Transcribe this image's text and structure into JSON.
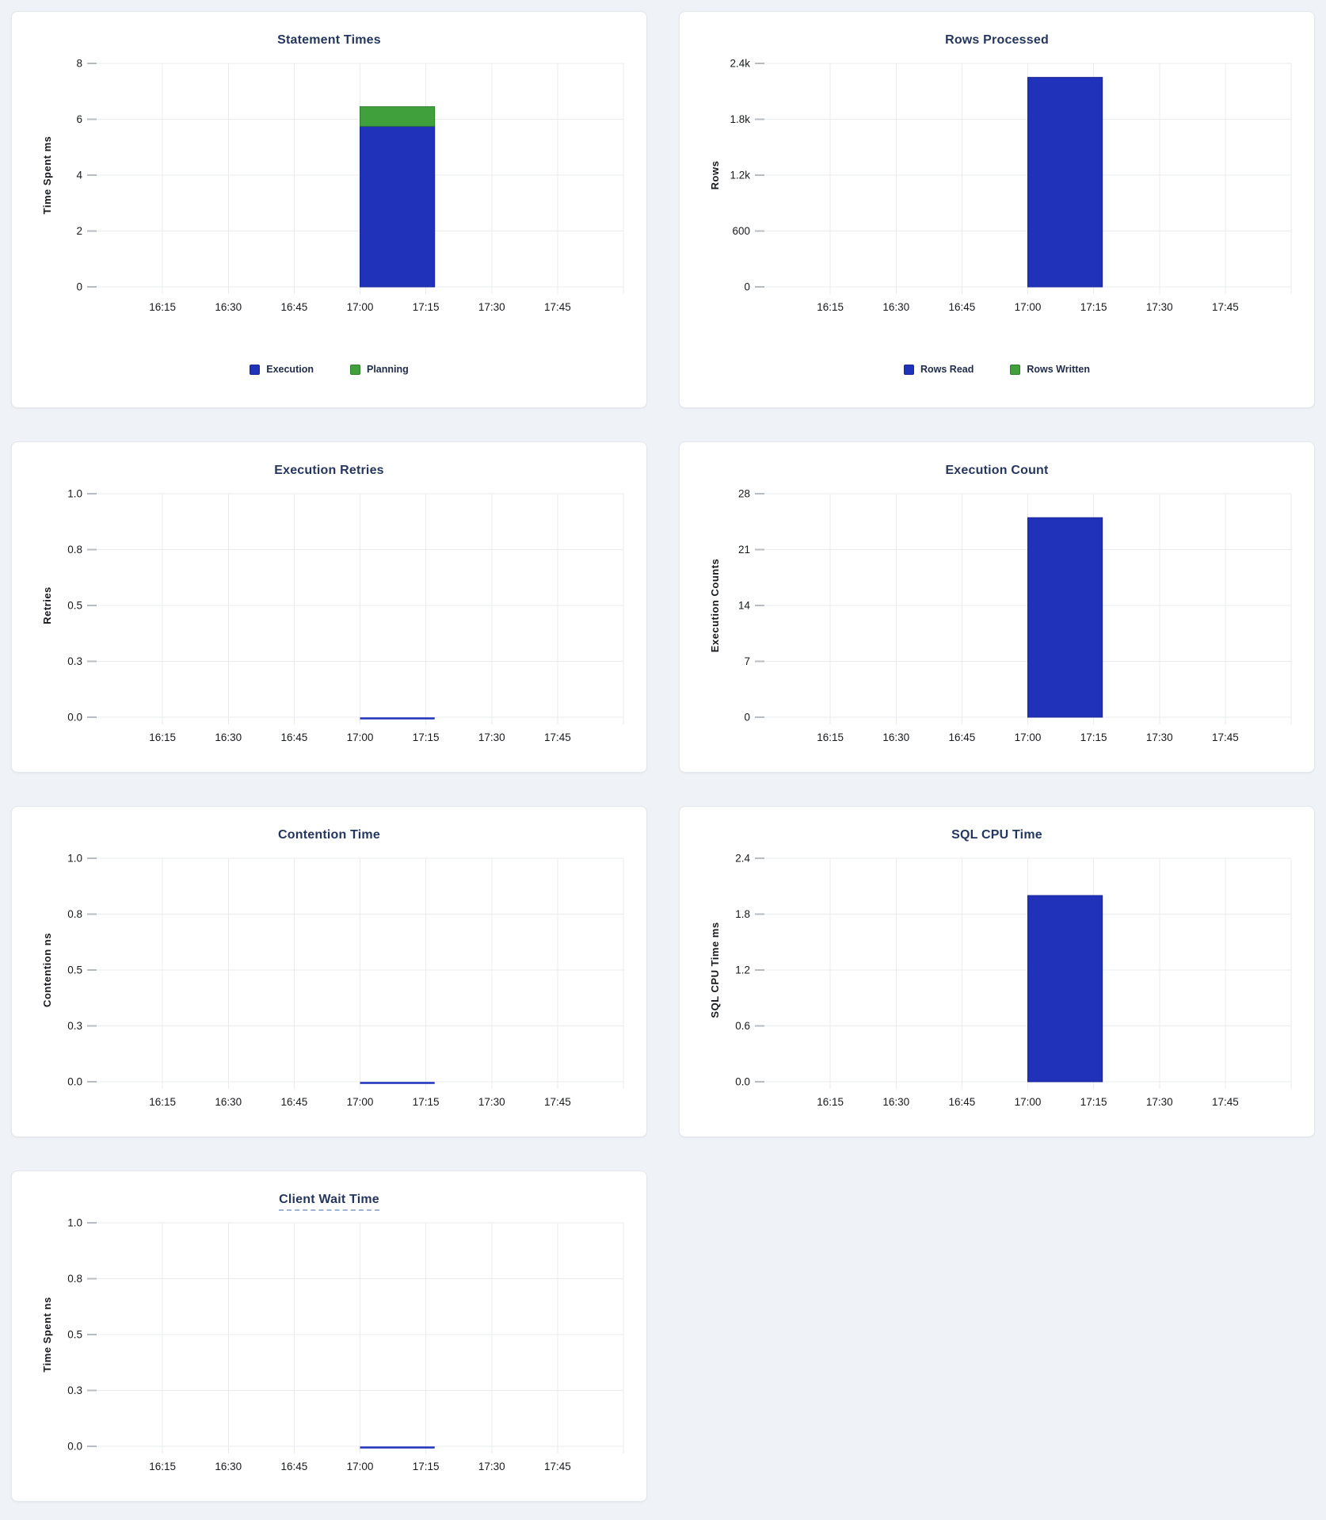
{
  "page": {
    "background": "#eff2f6"
  },
  "palette": {
    "bar_blue": "#2132ba",
    "bar_blue_edge": "#1a2894",
    "bar_green": "#3fa03c",
    "bar_green_edge": "#2e7d2c",
    "title_navy": "#25365e",
    "grid_line": "#e9ebee",
    "tick_mark": "#b7bbc2",
    "axis_text": "#17191d",
    "legend_text": "#1e2b49",
    "tooltip_underline": "#9fb3d4"
  },
  "x_axis": {
    "tick_labels": [
      "16:15",
      "16:30",
      "16:45",
      "17:00",
      "17:15",
      "17:30",
      "17:45"
    ],
    "tick_minutes": [
      15,
      30,
      45,
      60,
      75,
      90,
      105
    ],
    "range_minutes": [
      0,
      120
    ],
    "bar_span": {
      "start_min": 60,
      "end_min": 77,
      "bucket_start_label": "17:00",
      "bucket_end_label": "17:15"
    }
  },
  "chart_data": [
    {
      "id": "statement_times",
      "type": "bar",
      "title": "Statement Times",
      "ylabel": "Time Spent ms",
      "y_max": 8,
      "y_ticks": [
        {
          "v": 0,
          "label": "0"
        },
        {
          "v": 2,
          "label": "2"
        },
        {
          "v": 4,
          "label": "4"
        },
        {
          "v": 6,
          "label": "6"
        },
        {
          "v": 8,
          "label": "8"
        }
      ],
      "series": [
        {
          "name": "Execution",
          "color": "blue",
          "value": 5.75
        },
        {
          "name": "Planning",
          "color": "green",
          "value": 0.7
        }
      ],
      "legend": [
        {
          "label": "Execution",
          "color": "blue"
        },
        {
          "label": "Planning",
          "color": "green"
        }
      ]
    },
    {
      "id": "rows_processed",
      "type": "bar",
      "title": "Rows Processed",
      "ylabel": "Rows",
      "y_max": 2400,
      "y_ticks": [
        {
          "v": 0,
          "label": "0"
        },
        {
          "v": 600,
          "label": "600"
        },
        {
          "v": 1200,
          "label": "1.2k"
        },
        {
          "v": 1800,
          "label": "1.8k"
        },
        {
          "v": 2400,
          "label": "2.4k"
        }
      ],
      "series": [
        {
          "name": "Rows Read",
          "color": "blue",
          "value": 2250
        },
        {
          "name": "Rows Written",
          "color": "green",
          "value": 0
        }
      ],
      "legend": [
        {
          "label": "Rows Read",
          "color": "blue"
        },
        {
          "label": "Rows Written",
          "color": "green"
        }
      ]
    },
    {
      "id": "execution_retries",
      "type": "line",
      "title": "Execution Retries",
      "ylabel": "Retries",
      "y_max": 1,
      "y_ticks": [
        {
          "v": 0,
          "label": "0.0"
        },
        {
          "v": 0.25,
          "label": "0.3"
        },
        {
          "v": 0.5,
          "label": "0.5"
        },
        {
          "v": 0.75,
          "label": "0.8"
        },
        {
          "v": 1,
          "label": "1.0"
        }
      ],
      "series": [
        {
          "name": "Retries",
          "color": "blue",
          "value": 0
        }
      ]
    },
    {
      "id": "execution_count",
      "type": "bar",
      "title": "Execution Count",
      "ylabel": "Execution Counts",
      "y_max": 28,
      "y_ticks": [
        {
          "v": 0,
          "label": "0"
        },
        {
          "v": 7,
          "label": "7"
        },
        {
          "v": 14,
          "label": "14"
        },
        {
          "v": 21,
          "label": "21"
        },
        {
          "v": 28,
          "label": "28"
        }
      ],
      "series": [
        {
          "name": "Execution Count",
          "color": "blue",
          "value": 25
        }
      ]
    },
    {
      "id": "contention_time",
      "type": "line",
      "title": "Contention Time",
      "ylabel": "Contention ns",
      "y_max": 1,
      "y_ticks": [
        {
          "v": 0,
          "label": "0.0"
        },
        {
          "v": 0.25,
          "label": "0.3"
        },
        {
          "v": 0.5,
          "label": "0.5"
        },
        {
          "v": 0.75,
          "label": "0.8"
        },
        {
          "v": 1,
          "label": "1.0"
        }
      ],
      "series": [
        {
          "name": "Contention",
          "color": "blue",
          "value": 0
        }
      ]
    },
    {
      "id": "sql_cpu_time",
      "type": "bar",
      "title": "SQL CPU Time",
      "ylabel": "SQL CPU Time ms",
      "y_max": 2.4,
      "y_ticks": [
        {
          "v": 0,
          "label": "0.0"
        },
        {
          "v": 0.6,
          "label": "0.6"
        },
        {
          "v": 1.2,
          "label": "1.2"
        },
        {
          "v": 1.8,
          "label": "1.8"
        },
        {
          "v": 2.4,
          "label": "2.4"
        }
      ],
      "series": [
        {
          "name": "SQL CPU Time",
          "color": "blue",
          "value": 2.0
        }
      ]
    },
    {
      "id": "client_wait_time",
      "type": "line",
      "title": "Client Wait Time",
      "title_tooltip_underline": true,
      "ylabel": "Time Spent ns",
      "y_max": 1,
      "y_ticks": [
        {
          "v": 0,
          "label": "0.0"
        },
        {
          "v": 0.25,
          "label": "0.3"
        },
        {
          "v": 0.5,
          "label": "0.5"
        },
        {
          "v": 0.75,
          "label": "0.8"
        },
        {
          "v": 1,
          "label": "1.0"
        }
      ],
      "series": [
        {
          "name": "Client Wait",
          "color": "blue",
          "value": 0
        }
      ]
    }
  ]
}
